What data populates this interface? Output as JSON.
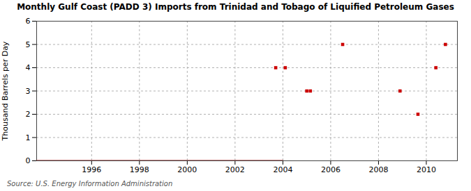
{
  "chart_data": {
    "type": "line",
    "title": "Monthly Gulf Coast (PADD 3) Imports from Trinidad and Tobago of Liquified Petroleum Gases",
    "ylabel": "Thousand Barrels per Day",
    "annotations": [
      "Source: U.S. Energy Information Administration"
    ],
    "xlim": [
      1993.7,
      2011.3
    ],
    "xticks": [
      1996,
      1998,
      2000,
      2002,
      2004,
      2006,
      2008,
      2010
    ],
    "ylim": [
      0,
      6
    ],
    "yticks": [
      0,
      1,
      2,
      3,
      4,
      5,
      6
    ],
    "grid": true,
    "series": [
      {
        "type": "line",
        "color": "#8B0000",
        "line_style": "solid",
        "x": [
          1993.7,
          2004.0
        ],
        "values": [
          0.0,
          0.0
        ]
      },
      {
        "type": "scatter",
        "color": "#cc0000",
        "marker": "square",
        "x": [
          2003.7,
          2004.1,
          2005.0,
          2005.15,
          2006.5,
          2008.9,
          2009.65,
          2010.4,
          2010.8
        ],
        "values": [
          4.0,
          4.0,
          3.0,
          3.0,
          5.0,
          3.0,
          2.0,
          4.0,
          5.0
        ]
      }
    ]
  }
}
